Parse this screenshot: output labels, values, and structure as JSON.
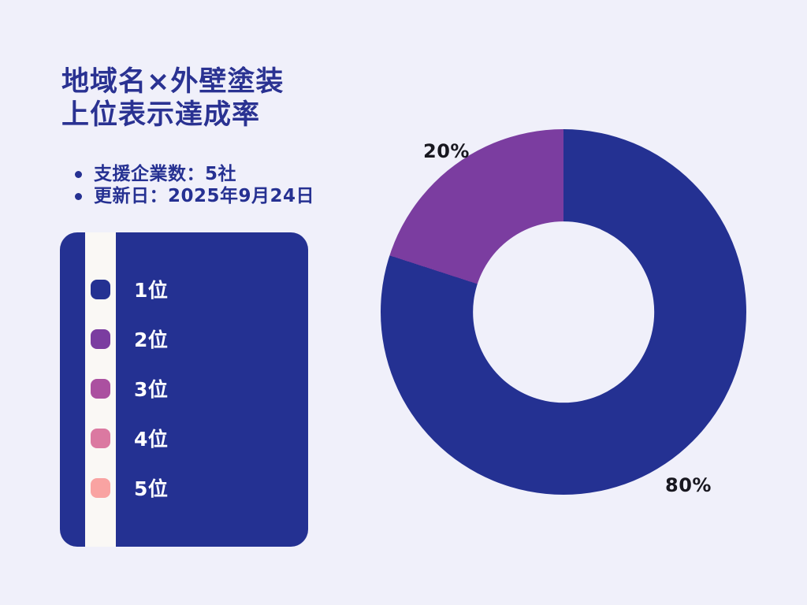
{
  "background_color": "#F0F0FA",
  "text_dark_color": "#18171F",
  "header": {
    "title_line1": "地域名×外壁塗装",
    "title_line2": "上位表示達成率",
    "title_color": "#2A3292"
  },
  "info": {
    "text_color": "#263192",
    "bullets": [
      "支援企業数：5社",
      "更新日：2025年9月24日"
    ]
  },
  "legend": {
    "panel_color": "#243192",
    "stripe_color": "#FAF8F5"
  },
  "chart_data": {
    "type": "pie",
    "donut": true,
    "title": "地域名×外壁塗装 上位表示達成率",
    "unit": "%",
    "start_angle": "top",
    "direction": "clockwise",
    "hole_ratio": 0.495,
    "legend_position": "left",
    "slices": [
      {
        "label": "1位",
        "value": 80,
        "color": "#243192",
        "data_label": "80%"
      },
      {
        "label": "2位",
        "value": 20,
        "color": "#7B3DA0",
        "data_label": "20%"
      },
      {
        "label": "3位",
        "value": 0,
        "color": "#AB50A0",
        "data_label": ""
      },
      {
        "label": "4位",
        "value": 0,
        "color": "#DB79A1",
        "data_label": ""
      },
      {
        "label": "5位",
        "value": 0,
        "color": "#F9A3A2",
        "data_label": ""
      }
    ]
  }
}
